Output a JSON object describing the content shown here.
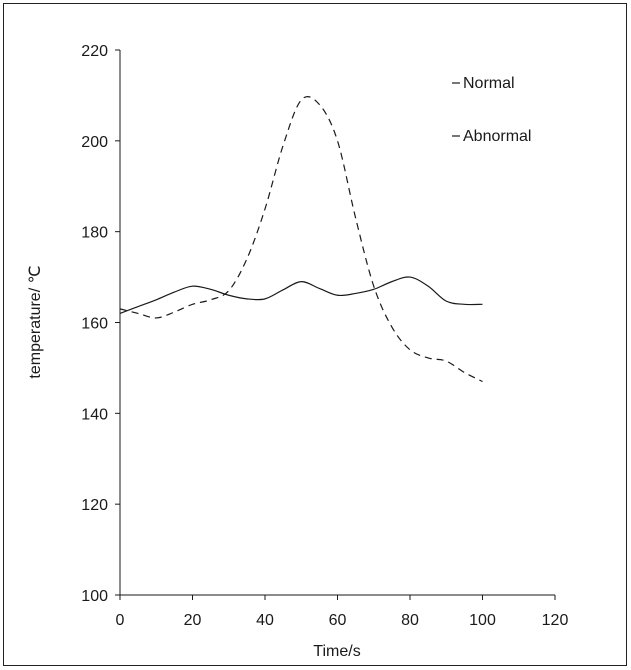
{
  "chart_data": {
    "type": "line",
    "title": "",
    "xlabel": "Time/s",
    "ylabel": "temperature/ ℃",
    "xlim": [
      0,
      120
    ],
    "ylim": [
      100,
      220
    ],
    "x_ticks": [
      0,
      20,
      40,
      60,
      80,
      100,
      120
    ],
    "y_ticks": [
      100,
      120,
      140,
      160,
      180,
      200,
      220
    ],
    "grid": false,
    "legend_position": "top-right",
    "series": [
      {
        "name": "Normal",
        "style": "solid",
        "color": "#1a1a1a",
        "points": [
          [
            0,
            162
          ],
          [
            5,
            163.5
          ],
          [
            10,
            165
          ],
          [
            15,
            166.7
          ],
          [
            20,
            168
          ],
          [
            25,
            167.3
          ],
          [
            30,
            166
          ],
          [
            35,
            165.2
          ],
          [
            40,
            165.2
          ],
          [
            45,
            167.2
          ],
          [
            50,
            169
          ],
          [
            55,
            167.5
          ],
          [
            60,
            166
          ],
          [
            65,
            166.4
          ],
          [
            70,
            167.3
          ],
          [
            75,
            169
          ],
          [
            80,
            170
          ],
          [
            85,
            168
          ],
          [
            90,
            164.7
          ],
          [
            95,
            164
          ],
          [
            100,
            164
          ]
        ]
      },
      {
        "name": "Abnormal",
        "style": "dashed",
        "color": "#1a1a1a",
        "points": [
          [
            0,
            163
          ],
          [
            5,
            162
          ],
          [
            10,
            161
          ],
          [
            15,
            162.3
          ],
          [
            20,
            164
          ],
          [
            25,
            165
          ],
          [
            30,
            167
          ],
          [
            35,
            174
          ],
          [
            40,
            185
          ],
          [
            45,
            199
          ],
          [
            50,
            209
          ],
          [
            55,
            208
          ],
          [
            60,
            200
          ],
          [
            65,
            183
          ],
          [
            70,
            168
          ],
          [
            75,
            159
          ],
          [
            80,
            154
          ],
          [
            85,
            152.2
          ],
          [
            90,
            151.5
          ],
          [
            95,
            149
          ],
          [
            100,
            147
          ]
        ]
      }
    ]
  }
}
